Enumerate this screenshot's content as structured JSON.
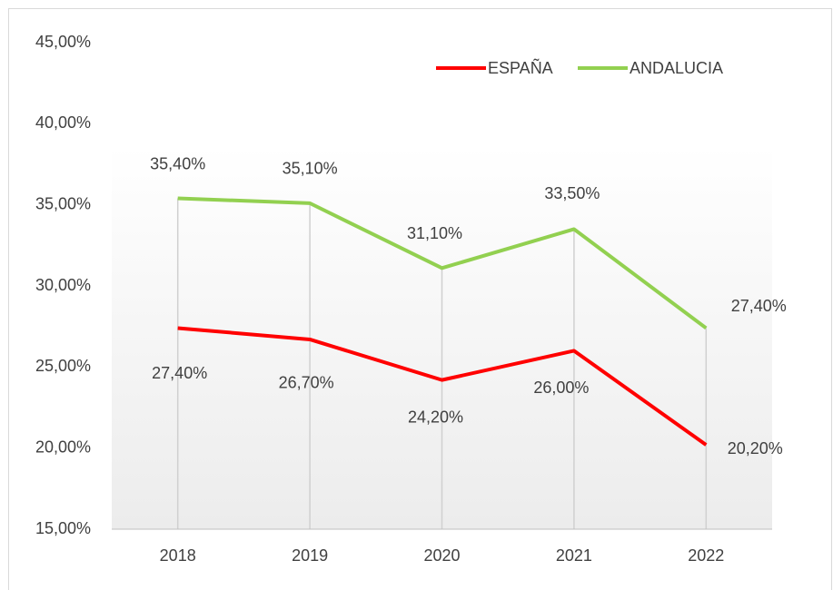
{
  "chart_data": {
    "type": "line",
    "categories": [
      "2018",
      "2019",
      "2020",
      "2021",
      "2022"
    ],
    "series": [
      {
        "name": "ESPAÑA",
        "color": "#ff0000",
        "values": [
          27.4,
          26.7,
          24.2,
          26.0,
          20.2
        ],
        "value_labels": [
          "27,40%",
          "26,70%",
          "24,20%",
          "26,00%",
          "20,20%"
        ]
      },
      {
        "name": "ANDALUCIA",
        "color": "#92d050",
        "values": [
          35.4,
          35.1,
          31.1,
          33.5,
          27.4
        ],
        "value_labels": [
          "35,40%",
          "35,10%",
          "31,10%",
          "33,50%",
          "27,40%"
        ]
      }
    ],
    "ylim": [
      15,
      45
    ],
    "yticks": [
      {
        "value": 15,
        "label": "15,00%"
      },
      {
        "value": 20,
        "label": "20,00%"
      },
      {
        "value": 25,
        "label": "25,00%"
      },
      {
        "value": 30,
        "label": "30,00%"
      },
      {
        "value": 35,
        "label": "35,00%"
      },
      {
        "value": 40,
        "label": "40,00%"
      },
      {
        "value": 45,
        "label": "45,00%"
      }
    ],
    "legend": "top-right"
  }
}
